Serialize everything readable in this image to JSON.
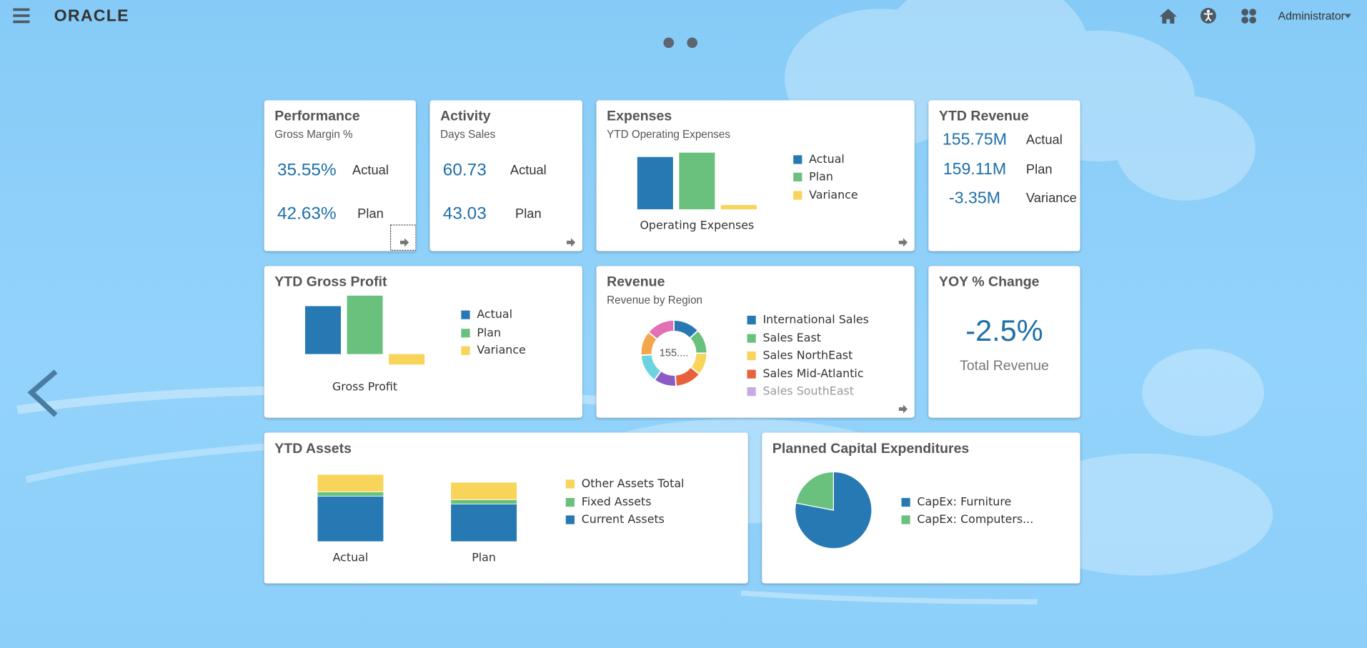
{
  "header": {
    "logo": "ORACLE",
    "user": "Administrator"
  },
  "cards": [
    {
      "title": "Performance",
      "subtitle": "Gross Margin %",
      "kpis": [
        {
          "value": "35.55%",
          "label": "Actual"
        },
        {
          "value": "42.63%",
          "label": "Plan"
        }
      ]
    },
    {
      "title": "Activity",
      "subtitle": "Days Sales",
      "kpis": [
        {
          "value": "60.73",
          "label": "Actual"
        },
        {
          "value": "43.03",
          "label": "Plan"
        }
      ]
    },
    {
      "title": "Expenses",
      "subtitle": "YTD Operating Expenses",
      "chart_data": {
        "type": "bar",
        "categories": [
          "Operating Expenses"
        ],
        "series": [
          {
            "name": "Actual",
            "color": "#2779b4",
            "values": [
              60
            ]
          },
          {
            "name": "Plan",
            "color": "#6ac17d",
            "values": [
              65
            ]
          },
          {
            "name": "Variance",
            "color": "#f9d45b",
            "values": [
              5
            ]
          }
        ]
      }
    },
    {
      "title": "YTD Revenue",
      "kpis": [
        {
          "value": "155.75M",
          "label": "Actual"
        },
        {
          "value": "159.11M",
          "label": "Plan"
        },
        {
          "value": "-3.35M",
          "label": "Variance"
        }
      ]
    },
    {
      "title": "YTD Gross Profit",
      "chart_data": {
        "type": "bar",
        "categories": [
          "Gross Profit"
        ],
        "series": [
          {
            "name": "Actual",
            "color": "#2779b4",
            "values": [
              55
            ]
          },
          {
            "name": "Plan",
            "color": "#6ac17d",
            "values": [
              67
            ]
          },
          {
            "name": "Variance",
            "color": "#f9d45b",
            "values": [
              -12
            ]
          }
        ]
      }
    },
    {
      "title": "Revenue",
      "subtitle": "Revenue by Region",
      "chart_data": {
        "type": "donut",
        "center_label": "155....",
        "categories": [
          "International Sales",
          "Sales East",
          "Sales NorthEast",
          "Sales Mid-Atlantic",
          "Sales SouthEast",
          null,
          null,
          null
        ],
        "values": [
          13,
          12,
          11,
          13,
          11,
          14,
          12,
          14
        ],
        "colors": [
          "#2779b4",
          "#6ac17d",
          "#f9d45b",
          "#e8603c",
          "#8a5cc4",
          "#6dd3e0",
          "#f4a64a",
          "#e36fb4"
        ]
      }
    },
    {
      "title": "YOY % Change",
      "kpis": [
        {
          "value": "-2.5%",
          "label": "Total Revenue"
        }
      ]
    },
    {
      "title": "YTD Assets",
      "chart_data": {
        "type": "stacked_bar",
        "categories": [
          "Actual",
          "Plan"
        ],
        "series": [
          {
            "name": "Current Assets",
            "color": "#2779b4",
            "values": [
              52,
              43
            ]
          },
          {
            "name": "Fixed Assets",
            "color": "#6ac17d",
            "values": [
              5,
              5
            ]
          },
          {
            "name": "Other Assets Total",
            "color": "#f9d45b",
            "values": [
              20,
              20
            ]
          }
        ]
      }
    },
    {
      "title": "Planned Capital Expenditures",
      "chart_data": {
        "type": "pie",
        "categories": [
          "CapEx: Furniture",
          "CapEx: Computers..."
        ],
        "values": [
          78,
          22
        ],
        "colors": [
          "#2779b4",
          "#6ac17d"
        ]
      }
    }
  ]
}
